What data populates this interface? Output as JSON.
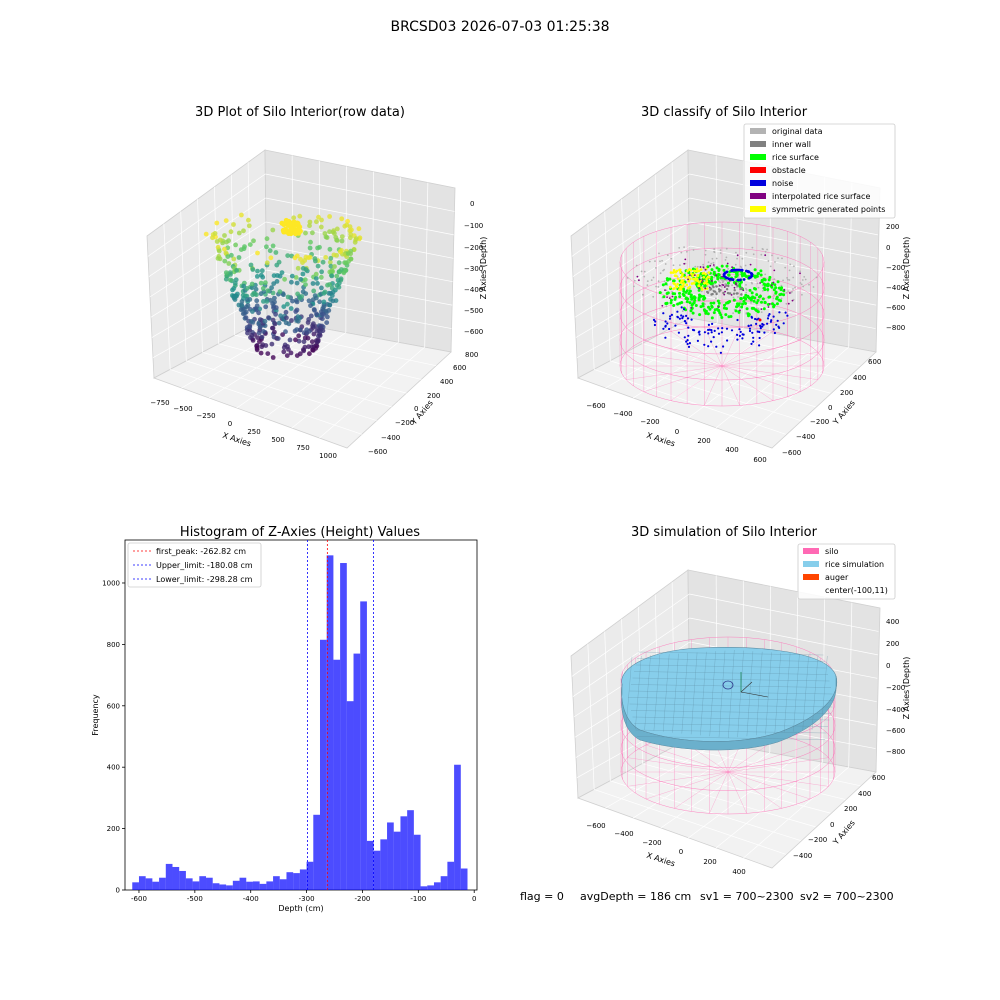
{
  "figure": {
    "suptitle": "BRCSD03 2026-07-03 01:25:38",
    "footer": {
      "flag": "flag = 0",
      "avg_depth": "avgDepth = 186 cm",
      "sv1": "sv1 = 700~2300",
      "sv2": "sv2 = 700~2300"
    }
  },
  "panels": {
    "raw": {
      "title": "3D Plot of Silo Interior(row data)",
      "xlabel": "X Axies",
      "ylabel": "Y Axies",
      "zlabel": "Z Axies (Depth)",
      "xticks": [
        "−750",
        "−500",
        "−250",
        "0",
        "250",
        "500",
        "750",
        "1000"
      ],
      "yticks": [
        "800",
        "600",
        "400",
        "200",
        "0",
        "−200",
        "−400",
        "−600"
      ],
      "zticks": [
        "0",
        "−100",
        "−200",
        "−300",
        "−400",
        "−500",
        "−600"
      ]
    },
    "classify": {
      "title": "3D classify of Silo Interior",
      "xlabel": "X Axies",
      "ylabel": "Y Axies",
      "zlabel": "Z Axies (Depth)",
      "xticks": [
        "−600",
        "−400",
        "−200",
        "0",
        "200",
        "400",
        "600"
      ],
      "yticks": [
        "600",
        "400",
        "200",
        "0",
        "−200",
        "−400",
        "−600"
      ],
      "zticks": [
        "200",
        "0",
        "−200",
        "−400",
        "−600",
        "−800"
      ],
      "legend": [
        {
          "label": "original data",
          "color": "#b3b3b3"
        },
        {
          "label": "inner wall",
          "color": "#808080"
        },
        {
          "label": "rice surface",
          "color": "#00ff00"
        },
        {
          "label": "obstacle",
          "color": "#ff0000"
        },
        {
          "label": "noise",
          "color": "#0000dd"
        },
        {
          "label": "interpolated rice surface",
          "color": "#800080"
        },
        {
          "label": "symmetric generated points",
          "color": "#ffff00"
        }
      ]
    },
    "simulation": {
      "title": "3D simulation of Silo Interior",
      "xlabel": "X Axies",
      "ylabel": "Y Axies",
      "zlabel": "Z Axies (Depth)",
      "xticks": [
        "−600",
        "−400",
        "−200",
        "0",
        "200",
        "400"
      ],
      "yticks": [
        "600",
        "400",
        "200",
        "0",
        "−200",
        "−400"
      ],
      "zticks": [
        "400",
        "200",
        "0",
        "−200",
        "−400",
        "−600",
        "−800"
      ],
      "legend": [
        {
          "label": "silo",
          "color": "#ff69b4"
        },
        {
          "label": "rice simulation",
          "color": "#87ceeb"
        },
        {
          "label": "auger",
          "color": "#ff4500"
        },
        {
          "label": "center(-100,11)",
          "color": ""
        }
      ]
    }
  },
  "chart_data": {
    "type": "bar",
    "title": "Histogram of Z-Axies (Height) Values",
    "xlabel": "Depth (cm)",
    "ylabel": "Frequency",
    "xlim": [
      -625,
      5
    ],
    "ylim": [
      0,
      1140
    ],
    "xticks": [
      -600,
      -500,
      -400,
      -300,
      -200,
      -100,
      0
    ],
    "yticks": [
      0,
      200,
      400,
      600,
      800,
      1000
    ],
    "bar_color": "#0000ff",
    "bin_start": -612,
    "bin_width": 12,
    "values": [
      25,
      45,
      38,
      27,
      40,
      85,
      75,
      62,
      38,
      28,
      45,
      40,
      22,
      18,
      15,
      30,
      40,
      27,
      28,
      20,
      28,
      45,
      35,
      58,
      55,
      67,
      92,
      245,
      815,
      1090,
      750,
      1065,
      615,
      770,
      940,
      160,
      128,
      165,
      220,
      190,
      240,
      260,
      180,
      12,
      15,
      25,
      45,
      92,
      408,
      70
    ],
    "vlines": [
      {
        "label": "first_peak: -262.82 cm",
        "x": -262.82,
        "color": "#ff0000"
      },
      {
        "label": "Upper_limit: -180.08 cm",
        "x": -180.08,
        "color": "#0000ff"
      },
      {
        "label": "Lower_limit: -298.28 cm",
        "x": -298.28,
        "color": "#0000ff"
      }
    ],
    "legend_position": "upper-left"
  }
}
